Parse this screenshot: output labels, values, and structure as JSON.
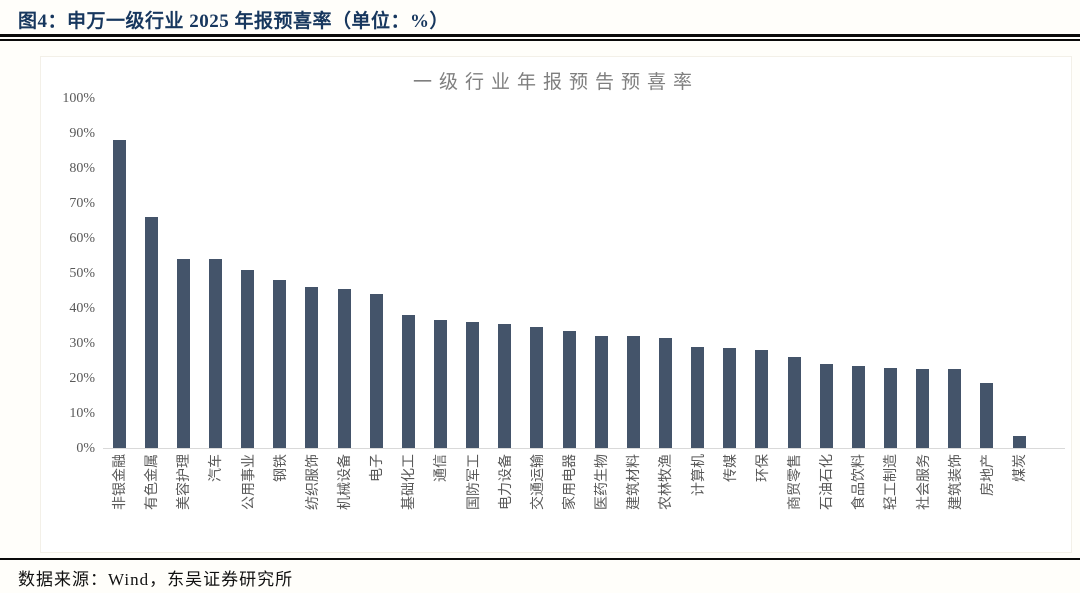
{
  "header": {
    "title": "图4：申万一级行业 2025 年报预喜率（单位：%）"
  },
  "chart_data": {
    "type": "bar",
    "title": "一级行业年报预告预喜率",
    "unit": "%",
    "categories": [
      "非银金融",
      "有色金属",
      "美容护理",
      "汽车",
      "公用事业",
      "钢铁",
      "纺织服饰",
      "机械设备",
      "电子",
      "基础化工",
      "通信",
      "国防军工",
      "电力设备",
      "交通运输",
      "家用电器",
      "医药生物",
      "建筑材料",
      "农林牧渔",
      "计算机",
      "传媒",
      "环保",
      "商贸零售",
      "石油石化",
      "食品饮料",
      "轻工制造",
      "社会服务",
      "建筑装饰",
      "房地产",
      "煤炭"
    ],
    "values": [
      88,
      66,
      54,
      54,
      51,
      48,
      46,
      45.5,
      44,
      38,
      36.5,
      36,
      35.5,
      34.5,
      33.5,
      32,
      32,
      31.5,
      29,
      28.5,
      28,
      26,
      24,
      23.5,
      23,
      22.5,
      22.5,
      18.5,
      3.5
    ],
    "ylim": [
      0,
      100
    ],
    "y_tick_labels": [
      "100%",
      "90%",
      "80%",
      "70%",
      "60%",
      "50%",
      "40%",
      "30%",
      "20%",
      "10%",
      "0%"
    ],
    "grid": false,
    "legend": false,
    "xlabel": "",
    "ylabel": "",
    "bar_color": "#44546a",
    "axis_text_color": "#595959",
    "axis_line_color": "#d9d9d9",
    "title_color": "#7f7f7f",
    "header_color": "#17375e"
  },
  "footer": {
    "source": "数据来源：Wind，东吴证券研究所"
  }
}
